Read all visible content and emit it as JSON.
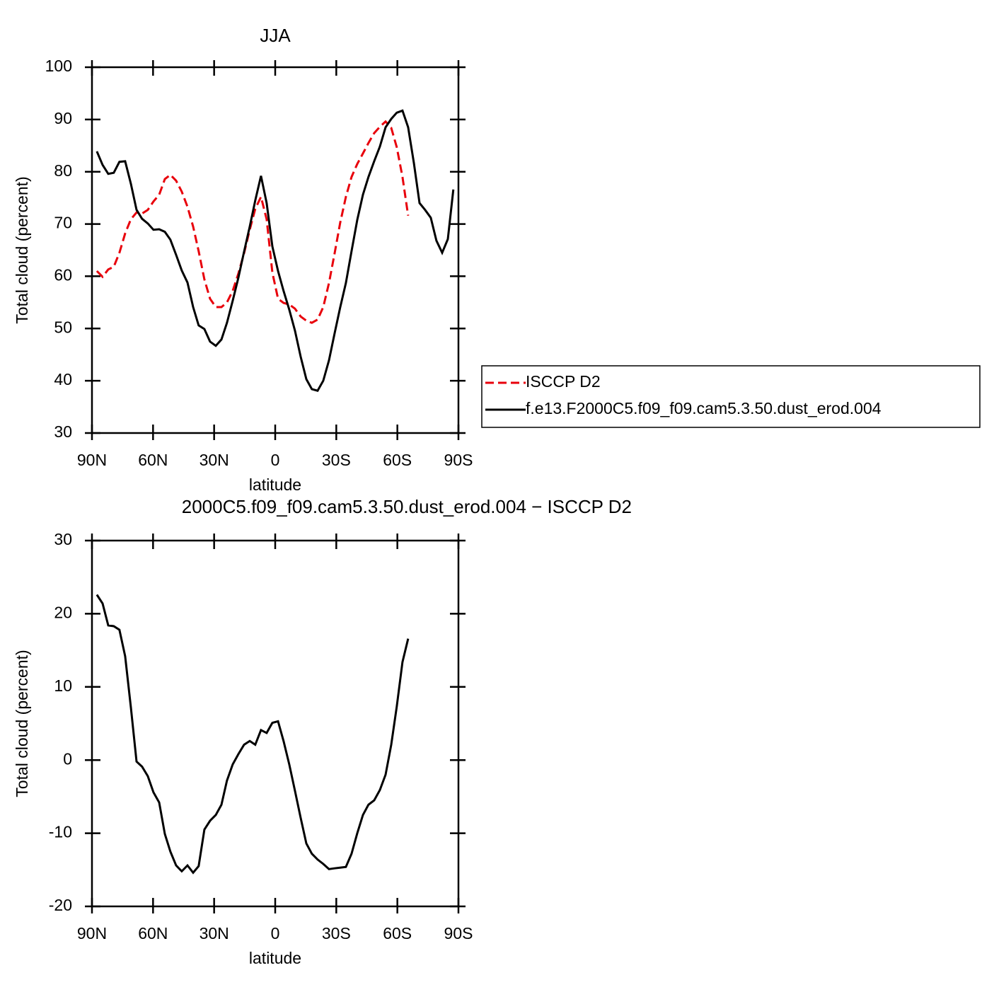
{
  "chart_data": [
    {
      "type": "line",
      "title": "JJA",
      "xlabel": "latitude",
      "ylabel": "Total cloud (percent)",
      "x": [
        87.6,
        84.8,
        82.0,
        79.3,
        76.5,
        73.7,
        70.9,
        68.1,
        65.4,
        62.6,
        59.8,
        57.0,
        54.2,
        51.5,
        48.7,
        45.9,
        43.1,
        40.3,
        37.6,
        34.8,
        32.0,
        29.2,
        26.4,
        23.7,
        20.9,
        18.1,
        15.3,
        12.5,
        9.8,
        7.0,
        4.2,
        1.4,
        -1.4,
        -4.1,
        -6.9,
        -9.7,
        -12.5,
        -15.3,
        -18.0,
        -20.8,
        -23.6,
        -26.4,
        -29.2,
        -31.9,
        -34.7,
        -37.5,
        -40.3,
        -43.1,
        -45.8,
        -48.6,
        -51.4,
        -54.2,
        -57.0,
        -59.7,
        -62.5,
        -65.3,
        -68.1,
        -70.9,
        -73.6,
        -76.4,
        -79.2,
        -82.0,
        -84.8,
        -87.5
      ],
      "series": [
        {
          "name": "ISCCP D2",
          "color": "#e8000b",
          "line_style": "dashed",
          "values": [
            61.0,
            59.9,
            61.3,
            61.8,
            64.5,
            68.2,
            70.9,
            72.2,
            72.0,
            72.7,
            74.3,
            75.6,
            78.6,
            79.4,
            78.3,
            76.2,
            73.3,
            69.5,
            64.8,
            59.4,
            55.7,
            54.1,
            54.1,
            55.0,
            57.2,
            60.5,
            64.4,
            68.9,
            72.9,
            75.2,
            70.9,
            60.7,
            55.7,
            54.9,
            54.6,
            53.8,
            52.3,
            51.5,
            51.1,
            51.7,
            54.1,
            58.7,
            64.4,
            70.2,
            75.2,
            79.0,
            81.5,
            83.5,
            85.5,
            87.4,
            88.6,
            89.6,
            88.4,
            84.7,
            79.0,
            71.6,
            null,
            null,
            null,
            null,
            null,
            null,
            null,
            null
          ]
        },
        {
          "name": "f.e13.F2000C5.f09_f09.cam5.3.50.dust_erod.004",
          "color": "#000000",
          "line_style": "solid",
          "values": [
            83.9,
            81.3,
            79.6,
            79.8,
            81.9,
            82.0,
            77.7,
            72.7,
            71.0,
            70.1,
            68.9,
            69.0,
            68.5,
            67.0,
            64.1,
            61.1,
            58.8,
            54.1,
            50.6,
            49.9,
            47.5,
            46.7,
            47.9,
            51.1,
            55.3,
            59.7,
            64.7,
            69.5,
            74.5,
            79.2,
            74.0,
            65.7,
            61.0,
            57.2,
            53.6,
            49.6,
            44.6,
            40.3,
            38.4,
            38.1,
            40.0,
            43.9,
            49.1,
            54.0,
            58.7,
            64.8,
            70.8,
            75.6,
            79.0,
            82.0,
            84.8,
            88.5,
            90.1,
            91.3,
            91.7,
            88.5,
            81.7,
            74.0,
            72.7,
            71.2,
            66.8,
            64.5,
            67.1,
            76.6
          ]
        }
      ],
      "xlim": [
        90,
        -90
      ],
      "ylim": [
        30,
        100
      ],
      "xticks": [
        {
          "value": 90,
          "label": "90N"
        },
        {
          "value": 60,
          "label": "60N"
        },
        {
          "value": 30,
          "label": "30N"
        },
        0,
        {
          "value": -30,
          "label": "30S"
        },
        {
          "value": -60,
          "label": "60S"
        },
        {
          "value": -90,
          "label": "90S"
        }
      ],
      "yticks": [
        30,
        40,
        50,
        60,
        70,
        80,
        90,
        100
      ],
      "legend": "right"
    },
    {
      "type": "line",
      "title": "2000C5.f09_f09.cam5.3.50.dust_erod.004 − ISCCP D2",
      "xlabel": "latitude",
      "ylabel": "Total cloud (percent)",
      "x": [
        87.6,
        84.8,
        82.0,
        79.3,
        76.5,
        73.7,
        70.9,
        68.1,
        65.4,
        62.6,
        59.8,
        57.0,
        54.2,
        51.5,
        48.7,
        45.9,
        43.1,
        40.3,
        37.6,
        34.8,
        32.0,
        29.2,
        26.4,
        23.7,
        20.9,
        18.1,
        15.3,
        12.5,
        9.8,
        7.0,
        4.2,
        1.4,
        -1.4,
        -4.1,
        -6.9,
        -9.7,
        -12.5,
        -15.3,
        -18.0,
        -20.8,
        -23.6,
        -26.4,
        -29.2,
        -31.9,
        -34.7,
        -37.5,
        -40.3,
        -43.1,
        -45.8,
        -48.6,
        -51.4,
        -54.2,
        -57.0,
        -59.7,
        -62.5,
        -65.3
      ],
      "values": [
        22.6,
        21.4,
        18.4,
        18.3,
        17.8,
        14.2,
        7.2,
        -0.2,
        -0.9,
        -2.2,
        -4.4,
        -5.8,
        -10.1,
        -12.5,
        -14.4,
        -15.2,
        -14.4,
        -15.4,
        -14.5,
        -9.5,
        -8.3,
        -7.5,
        -6.1,
        -2.8,
        -0.6,
        0.8,
        2.1,
        2.6,
        2.1,
        4.1,
        3.7,
        5.1,
        5.3,
        2.6,
        -0.6,
        -4.2,
        -7.9,
        -11.4,
        -12.8,
        -13.6,
        -14.2,
        -14.9,
        -14.8,
        -14.7,
        -14.6,
        -12.8,
        -10.0,
        -7.5,
        -6.1,
        -5.5,
        -4.1,
        -2.0,
        2.1,
        7.3,
        13.4,
        16.6
      ],
      "color": "#000000",
      "line_style": "solid",
      "xlim": [
        90,
        -90
      ],
      "ylim": [
        -20,
        30
      ],
      "xticks": [
        {
          "value": 90,
          "label": "90N"
        },
        {
          "value": 60,
          "label": "60N"
        },
        {
          "value": 30,
          "label": "30N"
        },
        0,
        {
          "value": -30,
          "label": "30S"
        },
        {
          "value": -60,
          "label": "60S"
        },
        {
          "value": -90,
          "label": "90S"
        }
      ],
      "yticks": [
        -20,
        -10,
        0,
        10,
        20,
        30
      ]
    }
  ]
}
